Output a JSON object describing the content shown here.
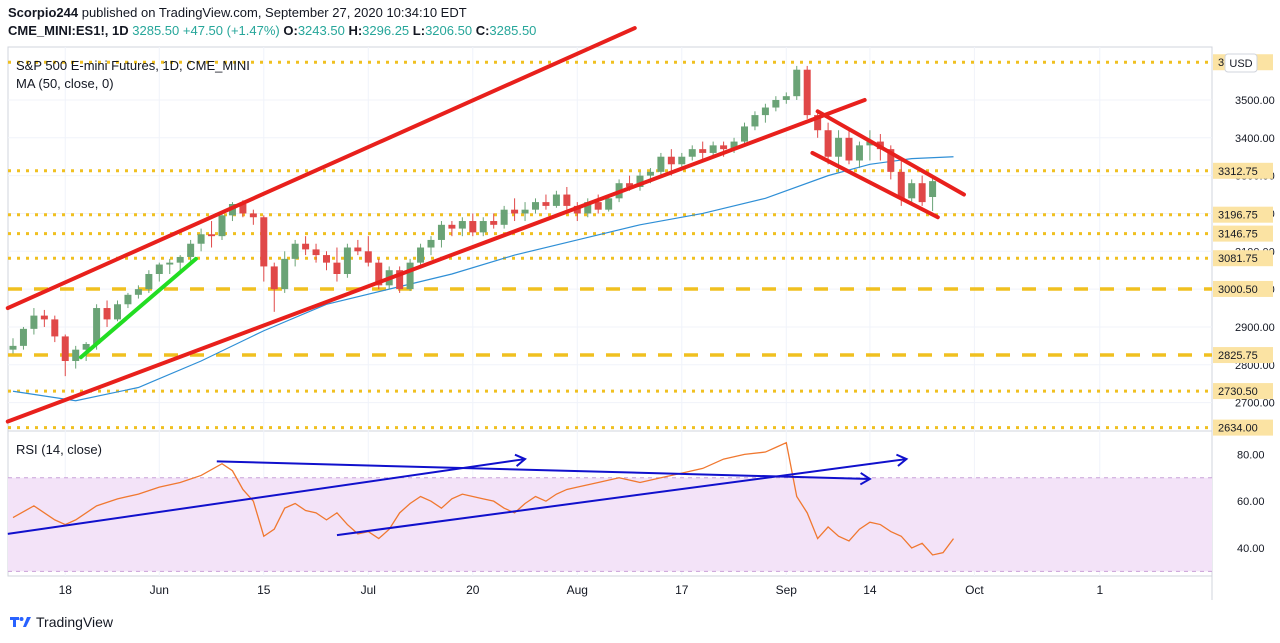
{
  "header": {
    "user": "Scorpio244",
    "published_text": "published on TradingView.com, September 27, 2020 10:34:10 EDT",
    "symbol": "CME_MINI:ES1!, 1D",
    "last": "3285.50",
    "change": "+47.50 (+1.47%)",
    "open_label": "O:",
    "open": "3243.50",
    "high_label": "H:",
    "high": "3296.25",
    "low_label": "L:",
    "low": "3206.50",
    "close_label": "C:",
    "close": "3285.50"
  },
  "legend": {
    "title": "S&P 500 E-mini Futures, 1D, CME_MINI",
    "ma": "MA (50, close, 0)",
    "rsi": "RSI (14, close)",
    "currency": "USD"
  },
  "footer": {
    "brand": "TradingView"
  },
  "colors": {
    "up": "#6aa376",
    "down": "#e04848",
    "trend": "#e8201c",
    "green_line": "#22dd22",
    "level": "#f0c020",
    "ma": "#2f8fd6",
    "rsi": "#f07830",
    "rsi_arrow": "#1010cc",
    "rsi_band": "#f3e3f8",
    "level_label_bg": "#fbe3a3"
  },
  "chart_data": [
    {
      "type": "candlestick",
      "title": "S&P 500 E-mini Futures, 1D, CME_MINI",
      "y_ticks": [
        2700,
        2800,
        2900,
        3000,
        3100,
        3200,
        3300,
        3400,
        3500
      ],
      "y_tick_labels": [
        "2700.00",
        "2800.00",
        "2900.00",
        "3000.00",
        "3100.00",
        "3200.00",
        "3300.00",
        "3400.00",
        "3500.00"
      ],
      "ylim": [
        2625,
        3640
      ],
      "x_tick_labels": [
        {
          "i": 5,
          "label": "18"
        },
        {
          "i": 14,
          "label": "Jun"
        },
        {
          "i": 24,
          "label": "15"
        },
        {
          "i": 34,
          "label": "Jul"
        },
        {
          "i": 44,
          "label": "20"
        },
        {
          "i": 54,
          "label": "Aug"
        },
        {
          "i": 64,
          "label": "17"
        },
        {
          "i": 74,
          "label": "Sep"
        },
        {
          "i": 82,
          "label": "14"
        },
        {
          "i": 92,
          "label": "Oct"
        },
        {
          "i": 104,
          "label": "1"
        }
      ],
      "candles": [
        [
          2840,
          2870,
          2830,
          2850
        ],
        [
          2850,
          2900,
          2840,
          2895
        ],
        [
          2895,
          2950,
          2880,
          2930
        ],
        [
          2930,
          2945,
          2900,
          2920
        ],
        [
          2920,
          2930,
          2860,
          2875
        ],
        [
          2875,
          2880,
          2770,
          2810
        ],
        [
          2810,
          2850,
          2790,
          2840
        ],
        [
          2840,
          2860,
          2810,
          2855
        ],
        [
          2855,
          2960,
          2840,
          2950
        ],
        [
          2950,
          2970,
          2900,
          2920
        ],
        [
          2920,
          2970,
          2915,
          2960
        ],
        [
          2960,
          2990,
          2950,
          2985
        ],
        [
          2985,
          3010,
          2975,
          3000
        ],
        [
          3000,
          3050,
          2990,
          3040
        ],
        [
          3040,
          3070,
          3020,
          3065
        ],
        [
          3065,
          3080,
          3040,
          3070
        ],
        [
          3070,
          3090,
          3050,
          3085
        ],
        [
          3085,
          3130,
          3070,
          3120
        ],
        [
          3120,
          3160,
          3100,
          3145
        ],
        [
          3145,
          3180,
          3110,
          3140
        ],
        [
          3140,
          3200,
          3130,
          3195
        ],
        [
          3195,
          3230,
          3180,
          3225
        ],
        [
          3225,
          3235,
          3190,
          3200
        ],
        [
          3200,
          3210,
          3170,
          3190
        ],
        [
          3190,
          3195,
          3020,
          3060
        ],
        [
          3060,
          3070,
          2940,
          3000
        ],
        [
          3000,
          3100,
          2990,
          3080
        ],
        [
          3080,
          3130,
          3060,
          3120
        ],
        [
          3120,
          3140,
          3090,
          3105
        ],
        [
          3105,
          3120,
          3070,
          3090
        ],
        [
          3090,
          3100,
          3050,
          3070
        ],
        [
          3070,
          3110,
          3020,
          3040
        ],
        [
          3040,
          3120,
          3030,
          3110
        ],
        [
          3110,
          3130,
          3090,
          3100
        ],
        [
          3100,
          3140,
          3060,
          3070
        ],
        [
          3070,
          3080,
          3000,
          3010
        ],
        [
          3010,
          3060,
          3000,
          3050
        ],
        [
          3050,
          3060,
          2990,
          3000
        ],
        [
          3000,
          3080,
          2995,
          3070
        ],
        [
          3070,
          3120,
          3060,
          3110
        ],
        [
          3110,
          3140,
          3090,
          3130
        ],
        [
          3130,
          3180,
          3110,
          3170
        ],
        [
          3170,
          3180,
          3140,
          3160
        ],
        [
          3160,
          3190,
          3140,
          3180
        ],
        [
          3180,
          3200,
          3140,
          3150
        ],
        [
          3150,
          3190,
          3140,
          3180
        ],
        [
          3180,
          3200,
          3160,
          3170
        ],
        [
          3170,
          3220,
          3160,
          3210
        ],
        [
          3210,
          3240,
          3180,
          3200
        ],
        [
          3200,
          3230,
          3180,
          3210
        ],
        [
          3210,
          3240,
          3200,
          3230
        ],
        [
          3230,
          3250,
          3210,
          3220
        ],
        [
          3220,
          3260,
          3215,
          3250
        ],
        [
          3250,
          3270,
          3210,
          3220
        ],
        [
          3220,
          3230,
          3180,
          3200
        ],
        [
          3200,
          3240,
          3190,
          3230
        ],
        [
          3230,
          3250,
          3200,
          3210
        ],
        [
          3210,
          3250,
          3205,
          3240
        ],
        [
          3240,
          3290,
          3230,
          3280
        ],
        [
          3280,
          3300,
          3260,
          3270
        ],
        [
          3270,
          3310,
          3260,
          3300
        ],
        [
          3300,
          3320,
          3280,
          3310
        ],
        [
          3310,
          3360,
          3300,
          3350
        ],
        [
          3350,
          3370,
          3300,
          3330
        ],
        [
          3330,
          3360,
          3320,
          3350
        ],
        [
          3350,
          3380,
          3340,
          3370
        ],
        [
          3370,
          3390,
          3340,
          3360
        ],
        [
          3360,
          3390,
          3350,
          3380
        ],
        [
          3380,
          3390,
          3350,
          3370
        ],
        [
          3370,
          3400,
          3360,
          3390
        ],
        [
          3390,
          3440,
          3380,
          3430
        ],
        [
          3430,
          3470,
          3420,
          3460
        ],
        [
          3460,
          3490,
          3440,
          3480
        ],
        [
          3480,
          3510,
          3470,
          3500
        ],
        [
          3500,
          3520,
          3490,
          3510
        ],
        [
          3510,
          3590,
          3500,
          3580
        ],
        [
          3580,
          3590,
          3450,
          3460
        ],
        [
          3460,
          3470,
          3400,
          3420
        ],
        [
          3420,
          3440,
          3330,
          3350
        ],
        [
          3350,
          3420,
          3310,
          3400
        ],
        [
          3400,
          3420,
          3330,
          3340
        ],
        [
          3340,
          3390,
          3320,
          3380
        ],
        [
          3380,
          3420,
          3340,
          3390
        ],
        [
          3390,
          3410,
          3340,
          3370
        ],
        [
          3370,
          3380,
          3290,
          3310
        ],
        [
          3310,
          3340,
          3220,
          3240
        ],
        [
          3240,
          3290,
          3230,
          3280
        ],
        [
          3280,
          3300,
          3220,
          3230
        ],
        [
          3243.5,
          3296.25,
          3206.5,
          3285.5
        ]
      ],
      "ma50": [
        [
          0,
          2730
        ],
        [
          6,
          2705
        ],
        [
          12,
          2740
        ],
        [
          18,
          2810
        ],
        [
          24,
          2890
        ],
        [
          30,
          2960
        ],
        [
          36,
          3000
        ],
        [
          42,
          3040
        ],
        [
          48,
          3090
        ],
        [
          54,
          3130
        ],
        [
          60,
          3170
        ],
        [
          66,
          3200
        ],
        [
          72,
          3240
        ],
        [
          78,
          3300
        ],
        [
          82,
          3330
        ],
        [
          86,
          3345
        ],
        [
          90,
          3350
        ]
      ],
      "levels": [
        {
          "value": 3599.75,
          "label": "3599.75",
          "style": "dotted"
        },
        {
          "value": 3312.75,
          "label": "3312.75",
          "style": "dotted"
        },
        {
          "value": 3196.75,
          "label": "3196.75",
          "style": "dotted"
        },
        {
          "value": 3146.75,
          "label": "3146.75",
          "style": "dotted"
        },
        {
          "value": 3081.75,
          "label": "3081.75",
          "style": "dotted"
        },
        {
          "value": 3000.5,
          "label": "3000.50",
          "style": "dashed"
        },
        {
          "value": 2825.75,
          "label": "2825.75",
          "style": "dashed"
        },
        {
          "value": 2730.5,
          "label": "2730.50",
          "style": "dotted"
        },
        {
          "value": 2634.0,
          "label": "2634.00",
          "style": "dotted"
        }
      ],
      "trendlines": [
        {
          "color": "trend",
          "p1": [
            -0.5,
            2950
          ],
          "p2": [
            59.5,
            3690
          ]
        },
        {
          "color": "trend",
          "p1": [
            -0.5,
            2650
          ],
          "p2": [
            81.5,
            3500
          ]
        },
        {
          "color": "trend",
          "p1": [
            77,
            3470
          ],
          "p2": [
            91,
            3250
          ]
        },
        {
          "color": "trend",
          "p1": [
            76.5,
            3360
          ],
          "p2": [
            88.5,
            3190
          ]
        },
        {
          "color": "green_line",
          "p1": [
            6.5,
            2820
          ],
          "p2": [
            17.5,
            3080
          ]
        }
      ]
    },
    {
      "type": "line",
      "title": "RSI (14, close)",
      "y_ticks": [
        40,
        60,
        80
      ],
      "y_tick_labels": [
        "40.00",
        "60.00",
        "80.00"
      ],
      "ylim": [
        28,
        90
      ],
      "band": [
        30,
        70
      ],
      "rsi": [
        [
          0,
          53
        ],
        [
          2,
          58
        ],
        [
          4,
          52
        ],
        [
          5,
          50
        ],
        [
          6,
          52
        ],
        [
          8,
          58
        ],
        [
          10,
          61
        ],
        [
          12,
          63
        ],
        [
          14,
          66
        ],
        [
          16,
          68
        ],
        [
          18,
          71
        ],
        [
          20,
          76
        ],
        [
          21,
          73
        ],
        [
          22,
          65
        ],
        [
          23,
          60
        ],
        [
          24,
          45
        ],
        [
          25,
          48
        ],
        [
          26,
          57
        ],
        [
          27,
          59
        ],
        [
          28,
          56
        ],
        [
          29,
          55
        ],
        [
          30,
          52
        ],
        [
          31,
          55
        ],
        [
          32,
          50
        ],
        [
          33,
          46
        ],
        [
          34,
          47
        ],
        [
          35,
          44
        ],
        [
          36,
          48
        ],
        [
          37,
          55
        ],
        [
          38,
          59
        ],
        [
          39,
          62
        ],
        [
          40,
          60
        ],
        [
          41,
          57
        ],
        [
          42,
          61
        ],
        [
          43,
          63
        ],
        [
          44,
          62
        ],
        [
          45,
          61
        ],
        [
          46,
          60
        ],
        [
          47,
          57
        ],
        [
          48,
          55
        ],
        [
          49,
          59
        ],
        [
          50,
          62
        ],
        [
          51,
          60
        ],
        [
          52,
          63
        ],
        [
          53,
          65
        ],
        [
          54,
          66
        ],
        [
          56,
          68
        ],
        [
          58,
          70
        ],
        [
          60,
          68
        ],
        [
          62,
          70
        ],
        [
          64,
          72
        ],
        [
          66,
          74
        ],
        [
          68,
          78
        ],
        [
          70,
          80
        ],
        [
          72,
          81
        ],
        [
          73,
          83
        ],
        [
          74,
          85
        ],
        [
          75,
          62
        ],
        [
          76,
          55
        ],
        [
          77,
          44
        ],
        [
          78,
          49
        ],
        [
          79,
          45
        ],
        [
          80,
          43
        ],
        [
          81,
          48
        ],
        [
          82,
          51
        ],
        [
          83,
          50
        ],
        [
          84,
          47
        ],
        [
          85,
          45
        ],
        [
          86,
          40
        ],
        [
          87,
          42
        ],
        [
          88,
          37
        ],
        [
          89,
          38
        ],
        [
          90,
          44
        ]
      ],
      "arrows": [
        {
          "p1": [
            -0.5,
            46
          ],
          "p2": [
            49,
            78
          ],
          "head": true
        },
        {
          "p1": [
            19.5,
            77
          ],
          "p2": [
            82,
            69.5
          ],
          "head": true
        },
        {
          "p1": [
            31,
            45.5
          ],
          "p2": [
            85.5,
            78
          ],
          "head": true
        }
      ]
    }
  ]
}
